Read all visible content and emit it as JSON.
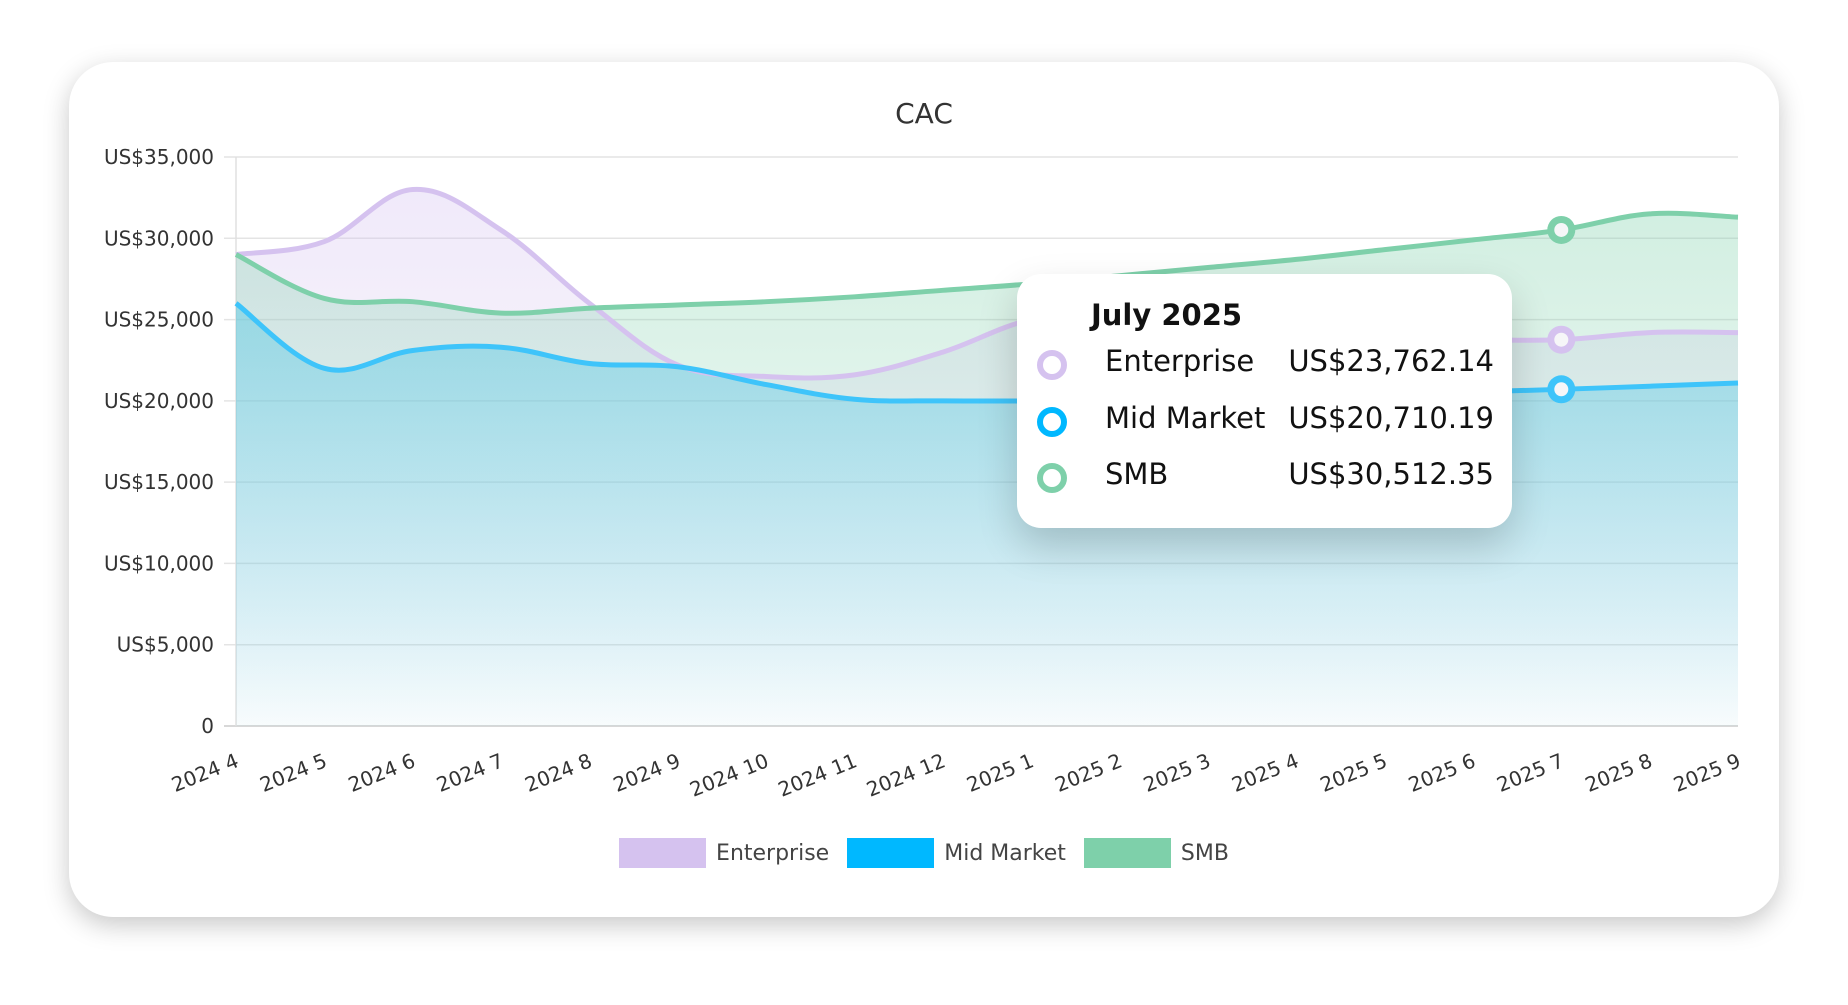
{
  "chart_data": {
    "type": "area",
    "title": "CAC",
    "x": [
      "2024 4",
      "2024 5",
      "2024 6",
      "2024 7",
      "2024 8",
      "2024 9",
      "2024 10",
      "2024 11",
      "2024 12",
      "2025 1",
      "2025 2",
      "2025 3",
      "2025 4",
      "2025 5",
      "2025 6",
      "2025 7",
      "2025 8",
      "2025 9"
    ],
    "ylim": [
      0,
      35000
    ],
    "yticks": [
      0,
      5000,
      10000,
      15000,
      20000,
      25000,
      30000,
      35000
    ],
    "ytick_labels": [
      "0",
      "US$5,000",
      "US$10,000",
      "US$15,000",
      "US$20,000",
      "US$25,000",
      "US$30,000",
      "US$35,000"
    ],
    "grid": true,
    "legend": "bottom",
    "series": [
      {
        "name": "Enterprise",
        "color": "#d5c2ef",
        "values": [
          29000,
          29800,
          33000,
          30500,
          26000,
          22200,
          21500,
          21600,
          23000,
          25000,
          25400,
          25000,
          24500,
          24100,
          23800,
          23762.14,
          24200,
          24200
        ]
      },
      {
        "name": "Mid Market",
        "color": "#3ec4fa",
        "values": [
          26000,
          22000,
          23100,
          23300,
          22300,
          22100,
          21000,
          20100,
          20000,
          20000,
          20100,
          20200,
          20300,
          20400,
          20550,
          20710.19,
          20900,
          21100
        ]
      },
      {
        "name": "SMB",
        "color": "#7ed0aa",
        "values": [
          29000,
          26300,
          26100,
          25400,
          25700,
          25900,
          26100,
          26400,
          26800,
          27200,
          27700,
          28200,
          28700,
          29300,
          29900,
          30512.35,
          31500,
          31300
        ]
      }
    ]
  },
  "tooltip": {
    "title": "July 2025",
    "rows": [
      {
        "label": "Enterprise",
        "value": "US$23,762.14",
        "color": "#d5c2ef"
      },
      {
        "label": "Mid Market",
        "value": "US$20,710.19",
        "color": "#00b8ff"
      },
      {
        "label": "SMB",
        "value": "US$30,512.35",
        "color": "#7ed0aa"
      }
    ]
  },
  "legend": [
    {
      "label": "Enterprise",
      "color": "#d5c2ef"
    },
    {
      "label": "Mid Market",
      "color": "#00b8ff"
    },
    {
      "label": "SMB",
      "color": "#7ed0aa"
    }
  ]
}
